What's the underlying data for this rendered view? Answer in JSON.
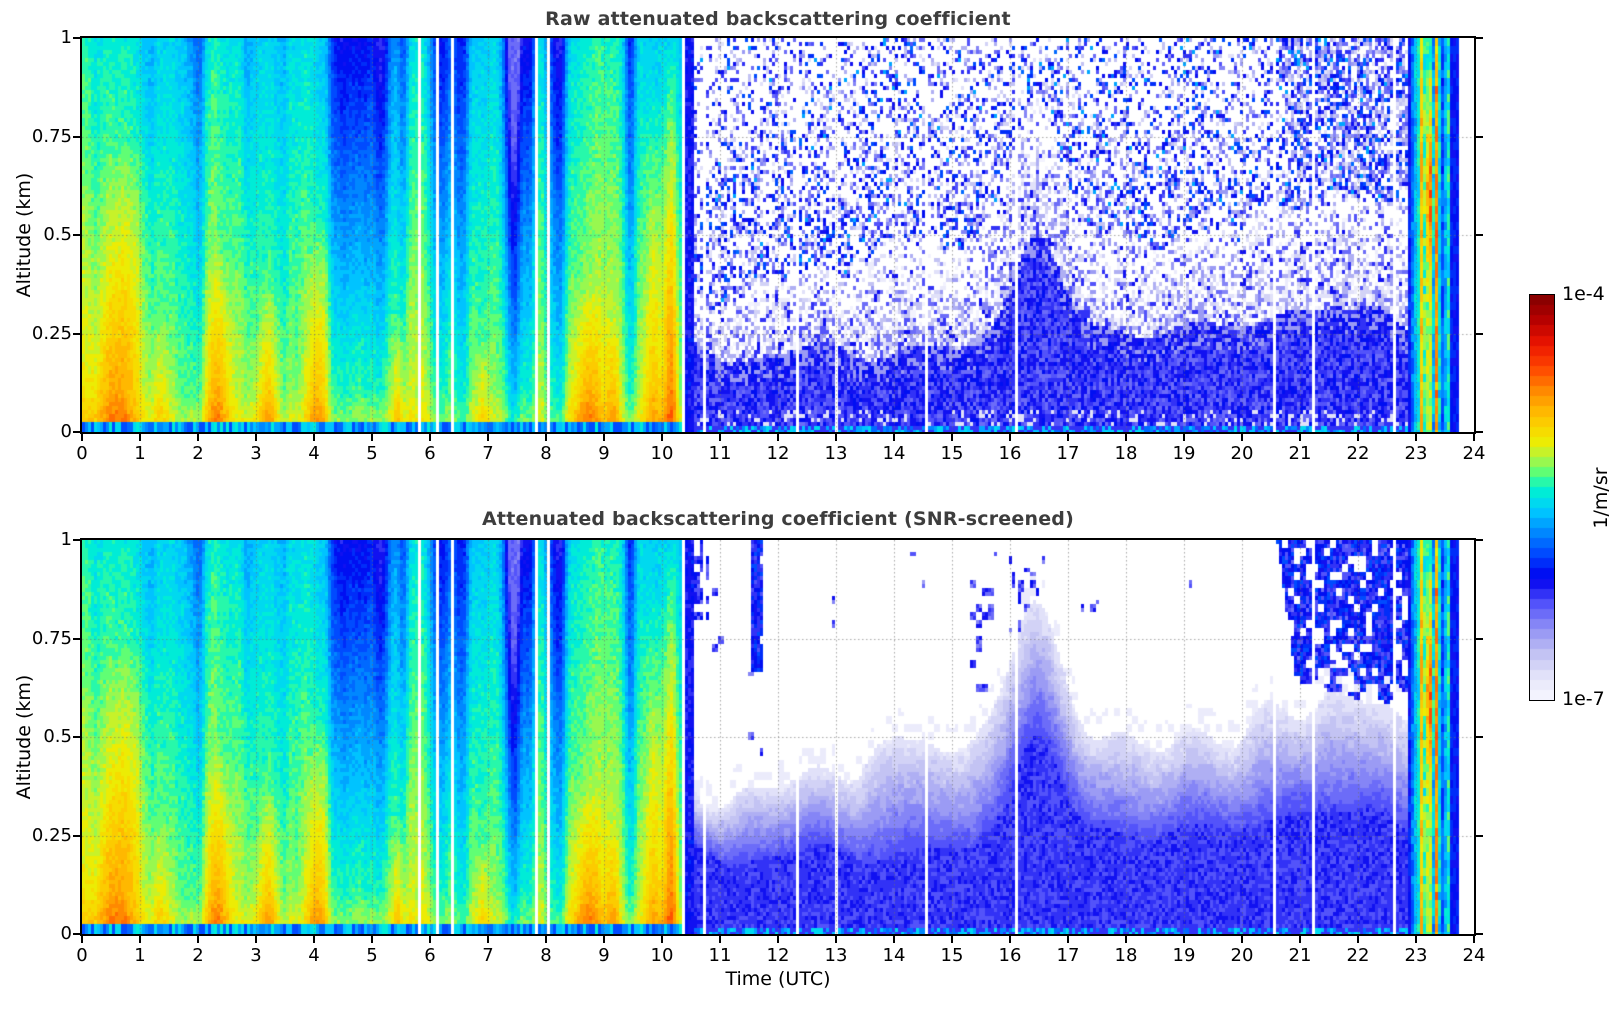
{
  "figure": {
    "background": "#ffffff",
    "title_color": "#3d3d3d",
    "axis_color": "#000000",
    "grid_color": "#6e6e6e"
  },
  "xaxis": {
    "label": "Time (UTC)",
    "ticks": [
      0,
      1,
      2,
      3,
      4,
      5,
      6,
      7,
      8,
      9,
      10,
      11,
      12,
      13,
      14,
      15,
      16,
      17,
      18,
      19,
      20,
      21,
      22,
      23,
      24
    ]
  },
  "yaxis": {
    "ticks": [
      0,
      0.25,
      0.5,
      0.75,
      1
    ],
    "tick_labels": [
      "0",
      "0.25",
      "0.5",
      "0.75",
      "1"
    ]
  },
  "colorbar": {
    "top_label": "1e-4",
    "bottom_label": "1e-7",
    "unit_label": "1/m/sr",
    "levels": 40,
    "log10_range": [
      -7,
      -4
    ],
    "stops": [
      [
        0,
        "#f7f7ff"
      ],
      [
        0.06,
        "#e3e3f9"
      ],
      [
        0.12,
        "#bebef2"
      ],
      [
        0.18,
        "#8c8cf5"
      ],
      [
        0.24,
        "#5050fa"
      ],
      [
        0.3,
        "#0000ee"
      ],
      [
        0.36,
        "#0048ff"
      ],
      [
        0.42,
        "#0090ff"
      ],
      [
        0.47,
        "#00ccff"
      ],
      [
        0.52,
        "#00f2d0"
      ],
      [
        0.56,
        "#5aff78"
      ],
      [
        0.6,
        "#b4f53c"
      ],
      [
        0.64,
        "#f0eb00"
      ],
      [
        0.7,
        "#ffc300"
      ],
      [
        0.76,
        "#ff8c00"
      ],
      [
        0.82,
        "#ff4600"
      ],
      [
        0.88,
        "#eb1400"
      ],
      [
        0.94,
        "#b40000"
      ],
      [
        1,
        "#800000"
      ]
    ]
  },
  "chart_data": [
    {
      "type": "heatmap",
      "title": "Raw attenuated backscattering coefficient",
      "ylabel": "Altitude (km)",
      "screened": false,
      "xlim": [
        0,
        24
      ],
      "ylim": [
        0,
        1
      ],
      "value_scale": "log10 of attenuated backscatter (1/m/sr)",
      "value_log10_range": [
        -7,
        -4
      ],
      "grid": true,
      "coarse_log10_grid": {
        "time_centers": [
          0.5,
          1.5,
          2.5,
          3.5,
          4.5,
          5.5,
          6.5,
          7.5,
          8.5,
          9.5,
          10.5,
          11.5,
          12.5,
          13.5,
          14.5,
          15.5,
          16.5,
          17.5,
          18.5,
          19.5,
          20.5,
          21.5,
          22.5,
          23.5
        ],
        "alt_centers": [
          0.1,
          0.3,
          0.5,
          0.7,
          0.9
        ],
        "values": [
          [
            -4.95,
            -5.2,
            -5.35,
            -5.45,
            -5.5
          ],
          [
            -5.1,
            -5.3,
            -5.4,
            -5.5,
            -5.55
          ],
          [
            -4.95,
            -5.3,
            -5.45,
            -5.5,
            -5.6
          ],
          [
            -4.95,
            -5.25,
            -5.45,
            -5.55,
            -5.6
          ],
          [
            -5.15,
            -5.4,
            -5.6,
            -5.7,
            -5.75
          ],
          [
            -5.2,
            -5.5,
            -5.75,
            -5.85,
            -5.85
          ],
          [
            -5.25,
            -5.5,
            -5.6,
            -5.7,
            -5.75
          ],
          [
            -5.3,
            -5.6,
            -5.9,
            -6.0,
            -5.95
          ],
          [
            -5.05,
            -5.4,
            -5.55,
            -5.65,
            -5.7
          ],
          [
            -5.0,
            -5.35,
            -5.5,
            -5.6,
            -5.65
          ],
          [
            -5.6,
            -6.3,
            -6.6,
            -6.7,
            -6.6
          ],
          [
            -6.2,
            -6.6,
            -6.9,
            -7.0,
            -6.9
          ],
          [
            -6.2,
            -6.65,
            -6.9,
            -7.0,
            -6.9
          ],
          [
            -6.2,
            -6.6,
            -6.95,
            -7.0,
            -6.9
          ],
          [
            -6.2,
            -6.65,
            -6.9,
            -7.0,
            -6.95
          ],
          [
            -6.2,
            -6.6,
            -6.9,
            -7.0,
            -6.9
          ],
          [
            -6.15,
            -6.45,
            -6.85,
            -7.0,
            -6.9
          ],
          [
            -6.2,
            -6.6,
            -6.9,
            -7.0,
            -6.95
          ],
          [
            -6.2,
            -6.65,
            -6.9,
            -7.0,
            -6.9
          ],
          [
            -6.2,
            -6.6,
            -6.9,
            -7.0,
            -6.9
          ],
          [
            -6.2,
            -6.6,
            -6.9,
            -6.9,
            -6.7
          ],
          [
            -6.2,
            -6.6,
            -6.9,
            -6.7,
            -6.3
          ],
          [
            -6.2,
            -6.6,
            -6.85,
            -6.6,
            -6.3
          ],
          [
            -5.7,
            -5.3,
            -5.2,
            -5.6,
            -5.9
          ]
        ]
      }
    },
    {
      "type": "heatmap",
      "title": "Attenuated backscattering coefficient (SNR-screened)",
      "ylabel": "Altitude (km)",
      "screened": true,
      "xlim": [
        0,
        24
      ],
      "ylim": [
        0,
        1
      ],
      "value_scale": "log10 of attenuated backscatter (1/m/sr)",
      "value_log10_range": [
        -7,
        -4
      ],
      "grid": true,
      "coarse_log10_grid": {
        "time_centers": [
          0.5,
          1.5,
          2.5,
          3.5,
          4.5,
          5.5,
          6.5,
          7.5,
          8.5,
          9.5,
          10.5,
          11.5,
          12.5,
          13.5,
          14.5,
          15.5,
          16.5,
          17.5,
          18.5,
          19.5,
          20.5,
          21.5,
          22.5,
          23.5
        ],
        "alt_centers": [
          0.1,
          0.3,
          0.5,
          0.7,
          0.9
        ],
        "values": [
          [
            -4.95,
            -5.2,
            -5.35,
            -5.45,
            -5.5
          ],
          [
            -5.1,
            -5.3,
            -5.4,
            -5.5,
            -5.55
          ],
          [
            -4.95,
            -5.3,
            -5.45,
            -5.5,
            -5.6
          ],
          [
            -4.95,
            -5.25,
            -5.45,
            -5.55,
            -5.6
          ],
          [
            -5.15,
            -5.4,
            -5.6,
            -5.7,
            -5.75
          ],
          [
            -5.2,
            -5.5,
            -5.75,
            -5.85,
            -5.85
          ],
          [
            -5.25,
            -5.5,
            -5.6,
            -5.7,
            -5.75
          ],
          [
            -5.3,
            -5.6,
            -5.9,
            -6.0,
            -5.95
          ],
          [
            -5.05,
            -5.4,
            -5.55,
            -5.65,
            -5.7
          ],
          [
            -5.0,
            -5.35,
            -5.5,
            -5.6,
            -5.65
          ],
          [
            -5.6,
            -6.3,
            -6.6,
            -6.7,
            -6.6
          ],
          [
            -6.2,
            -6.6,
            -6.9,
            null,
            -6.3
          ],
          [
            -6.2,
            -6.65,
            -6.9,
            null,
            null
          ],
          [
            -6.2,
            -6.6,
            -6.9,
            null,
            null
          ],
          [
            -6.2,
            -6.65,
            -6.9,
            null,
            null
          ],
          [
            -6.2,
            -6.6,
            -6.9,
            null,
            null
          ],
          [
            -6.15,
            -6.5,
            -6.9,
            -6.4,
            -6.3
          ],
          [
            -6.2,
            -6.6,
            -6.9,
            null,
            null
          ],
          [
            -6.2,
            -6.65,
            -6.9,
            null,
            null
          ],
          [
            -6.2,
            -6.6,
            -6.9,
            null,
            null
          ],
          [
            -6.2,
            -6.6,
            -6.9,
            null,
            -6.3
          ],
          [
            -6.2,
            -6.6,
            -6.9,
            -6.8,
            -6.15
          ],
          [
            -6.2,
            -6.6,
            -6.85,
            -6.8,
            -6.15
          ],
          [
            -5.7,
            -5.3,
            -5.2,
            -5.6,
            -5.9
          ]
        ]
      }
    }
  ],
  "features": {
    "aerosol": {
      "end_time": 10.33,
      "base_log10_surface": -5.18,
      "alt_gradient": -0.3,
      "surface_layer_boost": 0.12,
      "plumes": [
        [
          0.6,
          0.45,
          0.75,
          0.42,
          0.3
        ],
        [
          1.35,
          0.2,
          0.3,
          0.22,
          0
        ],
        [
          2.35,
          0.22,
          0.45,
          0.4,
          0.1
        ],
        [
          3.2,
          0.2,
          0.38,
          0.42,
          0.1
        ],
        [
          4.05,
          0.18,
          0.55,
          0.45,
          0.1
        ],
        [
          5.45,
          0.1,
          0.3,
          0.32,
          0
        ],
        [
          6.9,
          0.12,
          0.25,
          0.28,
          0
        ],
        [
          8.7,
          0.25,
          0.38,
          0.42,
          0.1
        ],
        [
          9.15,
          0.12,
          0.3,
          0.28,
          0
        ],
        [
          9.85,
          0.18,
          0.85,
          0.4,
          0
        ],
        [
          10.15,
          0.13,
          1.05,
          0.62,
          0
        ]
      ],
      "clean_bands": [
        [
          2.0,
          0.15,
          0.3
        ],
        [
          2.85,
          0.1,
          0.25
        ],
        [
          4.5,
          0.26,
          0.7
        ],
        [
          4.82,
          0.14,
          0.5
        ],
        [
          5.15,
          0.2,
          0.8
        ],
        [
          5.55,
          0.12,
          0.45
        ],
        [
          6.2,
          0.24,
          0.55
        ],
        [
          6.55,
          0.14,
          0.4
        ],
        [
          7.45,
          0.17,
          1.1
        ],
        [
          7.72,
          0.1,
          0.55
        ],
        [
          8.2,
          0.15,
          0.65
        ],
        [
          9.45,
          0.1,
          0.45
        ]
      ],
      "missing_times": [
        5.8,
        5.95,
        6.15,
        6.4,
        7.85,
        8.05
      ]
    },
    "noise_region": {
      "start_time": 10.56,
      "end_time": 22.87,
      "solid_top_base": 0.21,
      "bump_time": 16.5,
      "bump_height": 0.27,
      "missing_times": [
        10.75,
        12.35,
        13.0,
        14.55,
        16.1,
        19.5,
        20.55,
        21.25,
        22.62
      ]
    },
    "screened_features": {
      "blobs": [
        [
          11.55,
          11.72,
          0.67,
          1.0,
          0.92,
          -6.1
        ],
        [
          11.58,
          11.68,
          0.93,
          1.0,
          0.85,
          -5.65
        ],
        [
          11.5,
          11.75,
          0.45,
          0.67,
          0.12,
          -6.3
        ],
        [
          10.45,
          10.8,
          0.8,
          1.0,
          0.45,
          -6.2
        ],
        [
          10.85,
          11.1,
          0.72,
          0.88,
          0.1,
          -6.3
        ],
        [
          12.8,
          13.05,
          0.78,
          0.92,
          0.07,
          -6.3
        ],
        [
          14.2,
          14.55,
          0.85,
          0.97,
          0.06,
          -6.35
        ],
        [
          15.3,
          15.8,
          0.6,
          0.97,
          0.12,
          -6.3
        ],
        [
          16.0,
          16.6,
          0.58,
          1.0,
          0.22,
          -6.25
        ],
        [
          16.15,
          16.48,
          0.7,
          0.93,
          0.5,
          -6.2
        ],
        [
          17.2,
          17.55,
          0.7,
          0.85,
          0.08,
          -6.3
        ],
        [
          19.1,
          19.35,
          0.76,
          0.9,
          0.06,
          -6.35
        ]
      ],
      "top_right_region": [
        20.35,
        22.87,
        0.62,
        0.8,
        -6.12
      ]
    },
    "rain_event": {
      "start": 22.87,
      "ramp_end": 23.05,
      "core_end": 23.38,
      "tail_end": 23.58,
      "blue_end": 23.72,
      "core_center": [
        23.24,
        0.6
      ],
      "core_sigma": [
        0.06,
        0.14
      ],
      "core_log10": -4.35,
      "dark_marks": [
        23.275,
        0.63
      ]
    },
    "data_end_time": 23.72
  }
}
